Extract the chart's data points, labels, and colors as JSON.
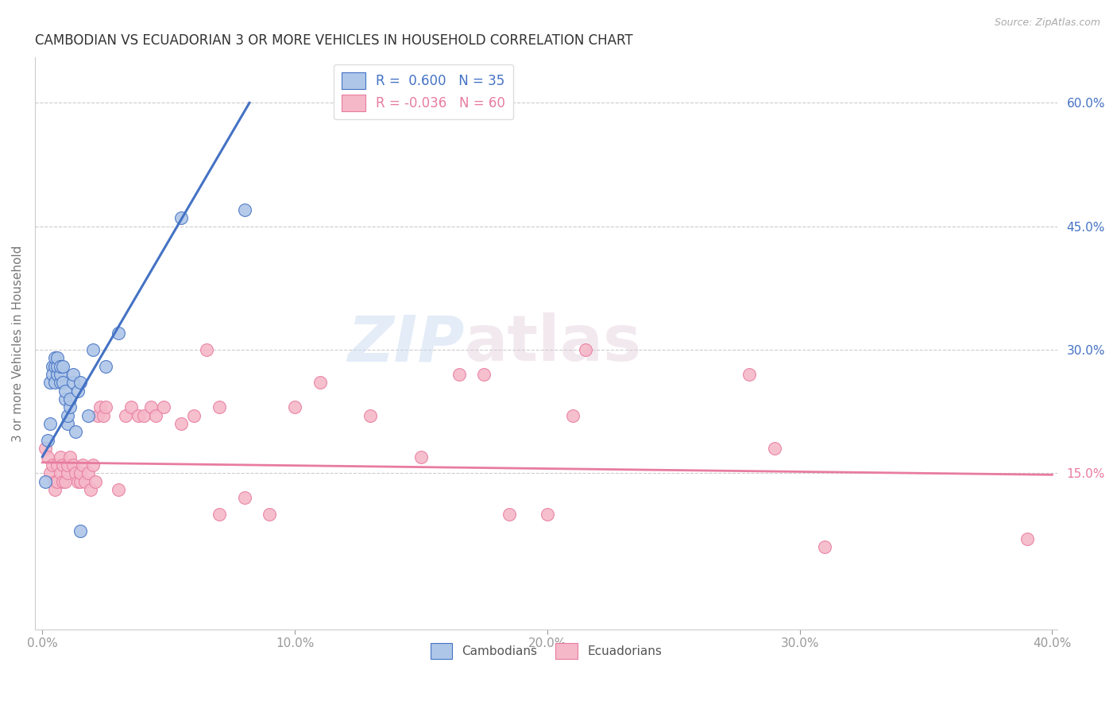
{
  "title": "CAMBODIAN VS ECUADORIAN 3 OR MORE VEHICLES IN HOUSEHOLD CORRELATION CHART",
  "source": "Source: ZipAtlas.com",
  "ylabel": "3 or more Vehicles in Household",
  "xlim": [
    -0.003,
    0.402
  ],
  "ylim": [
    -0.04,
    0.655
  ],
  "xtick_labels": [
    "0.0%",
    "",
    "10.0%",
    "",
    "20.0%",
    "",
    "30.0%",
    "",
    "40.0%"
  ],
  "xtick_vals": [
    0.0,
    0.05,
    0.1,
    0.15,
    0.2,
    0.25,
    0.3,
    0.35,
    0.4
  ],
  "xtick_display": [
    "0.0%",
    "10.0%",
    "20.0%",
    "30.0%",
    "40.0%"
  ],
  "xtick_display_vals": [
    0.0,
    0.1,
    0.2,
    0.3,
    0.4
  ],
  "ytick_right_labels": [
    "60.0%",
    "45.0%",
    "30.0%",
    "15.0%"
  ],
  "ytick_right_vals": [
    0.6,
    0.45,
    0.3,
    0.15
  ],
  "cambodian_color": "#aec6e8",
  "ecuadorian_color": "#f5b8c8",
  "cambodian_line_color": "#4472c4",
  "ecuadorian_line_color": "#e87ca0",
  "legend_cambodian_R": "0.600",
  "legend_cambodian_N": "35",
  "legend_ecuadorian_R": "-0.036",
  "legend_ecuadorian_N": "60",
  "watermark_zip": "ZIP",
  "watermark_atlas": "atlas",
  "cam_line_x0": 0.0,
  "cam_line_y0": 0.17,
  "cam_line_x1": 0.082,
  "cam_line_y1": 0.6,
  "ecu_line_x0": 0.0,
  "ecu_line_y0": 0.163,
  "ecu_line_x1": 0.4,
  "ecu_line_y1": 0.148,
  "cambodian_x": [
    0.001,
    0.002,
    0.003,
    0.003,
    0.004,
    0.004,
    0.005,
    0.005,
    0.005,
    0.006,
    0.006,
    0.006,
    0.007,
    0.007,
    0.007,
    0.008,
    0.008,
    0.009,
    0.009,
    0.01,
    0.01,
    0.011,
    0.011,
    0.012,
    0.012,
    0.013,
    0.014,
    0.015,
    0.018,
    0.02,
    0.025,
    0.03,
    0.055,
    0.08,
    0.015
  ],
  "cambodian_y": [
    0.14,
    0.19,
    0.21,
    0.26,
    0.28,
    0.27,
    0.26,
    0.28,
    0.29,
    0.27,
    0.28,
    0.29,
    0.26,
    0.27,
    0.28,
    0.26,
    0.28,
    0.24,
    0.25,
    0.21,
    0.22,
    0.23,
    0.24,
    0.26,
    0.27,
    0.2,
    0.25,
    0.26,
    0.22,
    0.3,
    0.28,
    0.32,
    0.46,
    0.47,
    0.08
  ],
  "ecuadorian_x": [
    0.001,
    0.002,
    0.003,
    0.004,
    0.005,
    0.005,
    0.006,
    0.006,
    0.007,
    0.007,
    0.008,
    0.008,
    0.009,
    0.01,
    0.01,
    0.011,
    0.012,
    0.013,
    0.014,
    0.015,
    0.015,
    0.016,
    0.017,
    0.018,
    0.019,
    0.02,
    0.021,
    0.022,
    0.023,
    0.024,
    0.025,
    0.03,
    0.033,
    0.035,
    0.038,
    0.04,
    0.043,
    0.045,
    0.048,
    0.055,
    0.06,
    0.065,
    0.07,
    0.08,
    0.09,
    0.1,
    0.11,
    0.13,
    0.15,
    0.165,
    0.175,
    0.185,
    0.2,
    0.21,
    0.215,
    0.28,
    0.29,
    0.31,
    0.39,
    0.07
  ],
  "ecuadorian_y": [
    0.18,
    0.17,
    0.15,
    0.16,
    0.14,
    0.13,
    0.14,
    0.16,
    0.15,
    0.17,
    0.14,
    0.16,
    0.14,
    0.15,
    0.16,
    0.17,
    0.16,
    0.15,
    0.14,
    0.14,
    0.15,
    0.16,
    0.14,
    0.15,
    0.13,
    0.16,
    0.14,
    0.22,
    0.23,
    0.22,
    0.23,
    0.13,
    0.22,
    0.23,
    0.22,
    0.22,
    0.23,
    0.22,
    0.23,
    0.21,
    0.22,
    0.3,
    0.1,
    0.12,
    0.1,
    0.23,
    0.26,
    0.22,
    0.17,
    0.27,
    0.27,
    0.1,
    0.1,
    0.22,
    0.3,
    0.27,
    0.18,
    0.06,
    0.07,
    0.23
  ]
}
